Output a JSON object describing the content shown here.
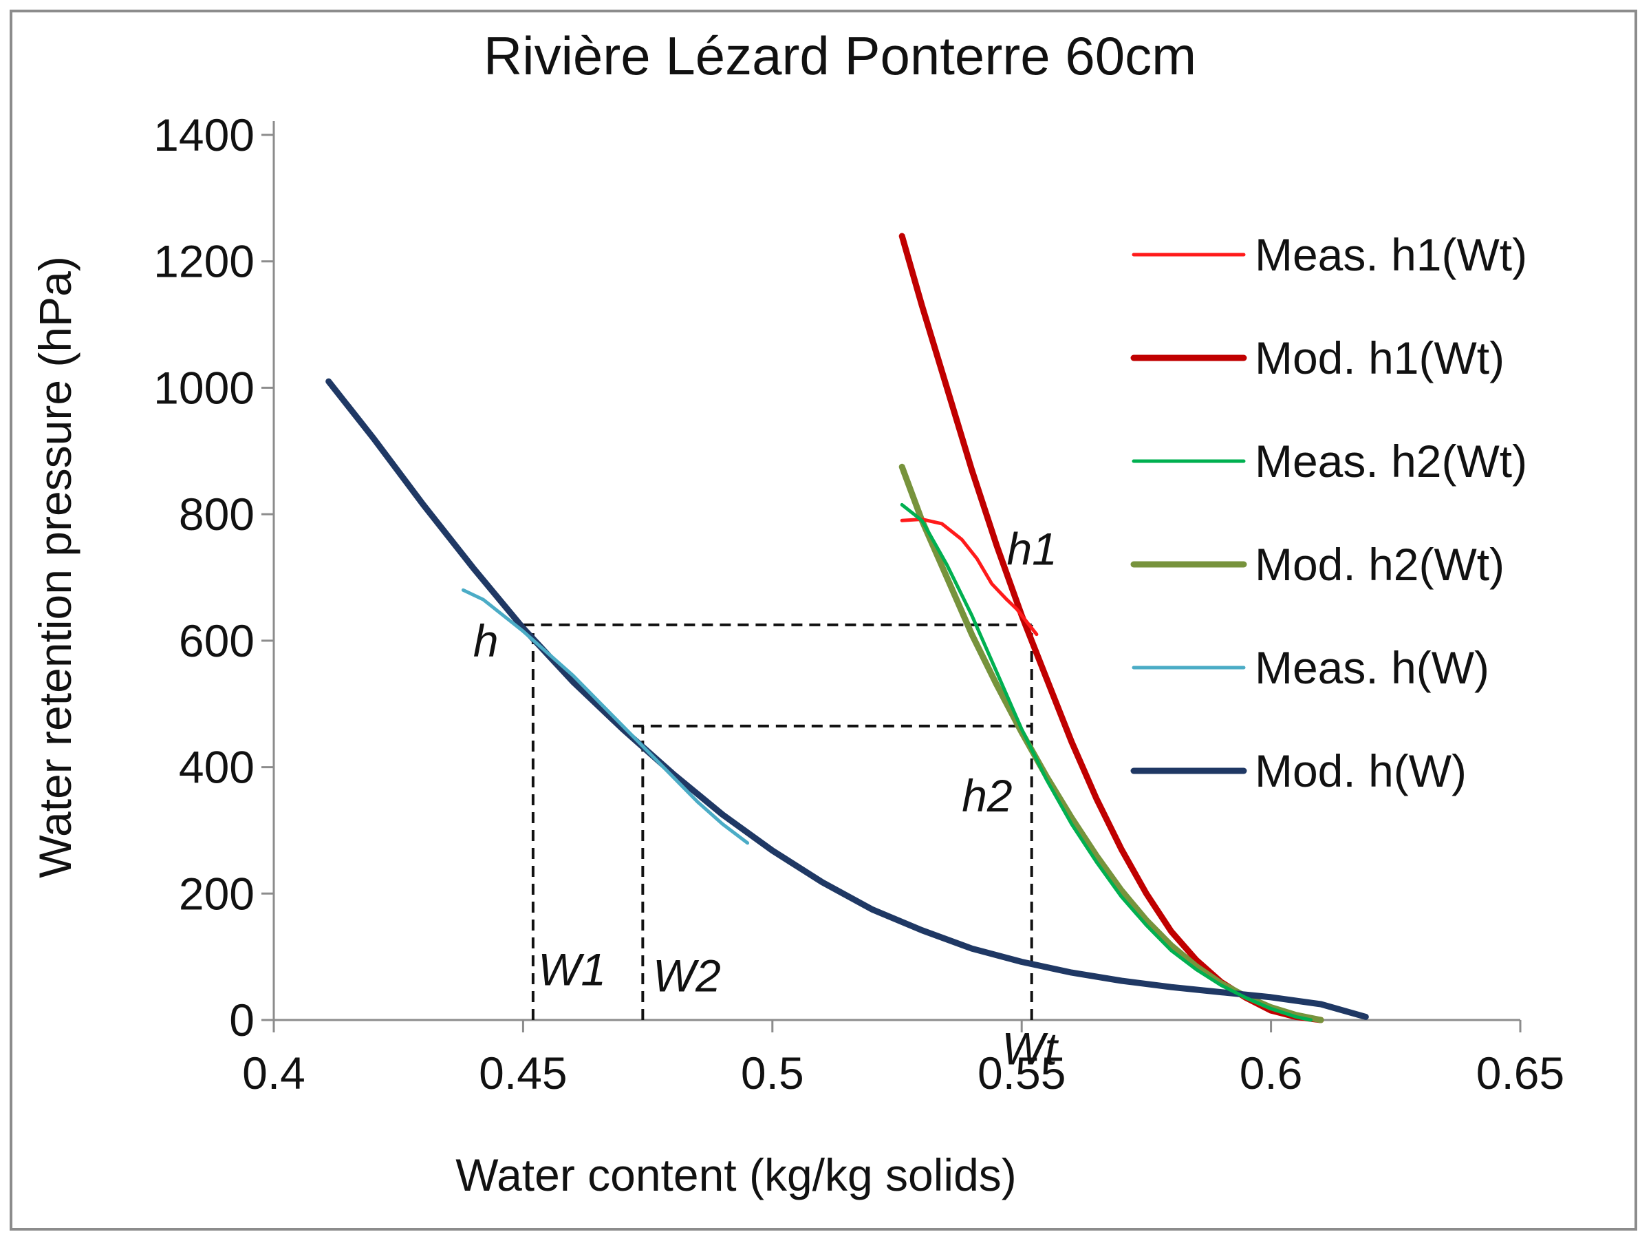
{
  "chart_data": {
    "type": "line",
    "title": "Rivière Lézard  Ponterre 60cm",
    "xlabel": "Water content (kg/kg solids)",
    "ylabel": "Water retention pressure (hPa)",
    "xlim": [
      0.4,
      0.65
    ],
    "ylim": [
      0,
      1400
    ],
    "xticks": [
      0.4,
      0.45,
      0.5,
      0.55,
      0.6,
      0.65
    ],
    "xtick_labels": [
      "0.4",
      "0.45",
      "0.5",
      "0.55",
      "0.6",
      "0.65"
    ],
    "yticks": [
      0,
      200,
      400,
      600,
      800,
      1000,
      1200,
      1400
    ],
    "ytick_labels": [
      "0",
      "200",
      "400",
      "600",
      "800",
      "1000",
      "1200",
      "1400"
    ],
    "legend_position": "right",
    "series": [
      {
        "name": "Meas. h1(Wt)",
        "color": "#ff1a1a",
        "width": "thin",
        "points": [
          [
            0.526,
            790
          ],
          [
            0.53,
            792
          ],
          [
            0.534,
            785
          ],
          [
            0.538,
            760
          ],
          [
            0.541,
            730
          ],
          [
            0.544,
            690
          ],
          [
            0.547,
            665
          ],
          [
            0.549,
            650
          ],
          [
            0.551,
            630
          ],
          [
            0.553,
            610
          ]
        ]
      },
      {
        "name": "Mod. h1(Wt)",
        "color": "#c00000",
        "width": "thick",
        "points": [
          [
            0.526,
            1240
          ],
          [
            0.53,
            1130
          ],
          [
            0.535,
            1000
          ],
          [
            0.54,
            870
          ],
          [
            0.545,
            750
          ],
          [
            0.55,
            640
          ],
          [
            0.555,
            540
          ],
          [
            0.56,
            440
          ],
          [
            0.565,
            350
          ],
          [
            0.57,
            270
          ],
          [
            0.575,
            200
          ],
          [
            0.58,
            140
          ],
          [
            0.585,
            95
          ],
          [
            0.59,
            60
          ],
          [
            0.595,
            35
          ],
          [
            0.6,
            15
          ],
          [
            0.605,
            5
          ],
          [
            0.61,
            0
          ]
        ]
      },
      {
        "name": "Meas. h2(Wt)",
        "color": "#00b050",
        "width": "thin",
        "points": [
          [
            0.526,
            815
          ],
          [
            0.53,
            790
          ],
          [
            0.535,
            720
          ],
          [
            0.54,
            640
          ],
          [
            0.545,
            550
          ],
          [
            0.55,
            460
          ],
          [
            0.555,
            380
          ],
          [
            0.56,
            310
          ],
          [
            0.565,
            250
          ],
          [
            0.57,
            195
          ],
          [
            0.575,
            150
          ],
          [
            0.58,
            110
          ],
          [
            0.585,
            80
          ],
          [
            0.59,
            55
          ],
          [
            0.595,
            35
          ],
          [
            0.6,
            18
          ],
          [
            0.605,
            5
          ],
          [
            0.608,
            0
          ]
        ]
      },
      {
        "name": "Mod. h2(Wt)",
        "color": "#77933c",
        "width": "thick",
        "points": [
          [
            0.526,
            875
          ],
          [
            0.53,
            790
          ],
          [
            0.535,
            700
          ],
          [
            0.54,
            610
          ],
          [
            0.545,
            530
          ],
          [
            0.55,
            455
          ],
          [
            0.555,
            385
          ],
          [
            0.56,
            320
          ],
          [
            0.565,
            260
          ],
          [
            0.57,
            205
          ],
          [
            0.575,
            158
          ],
          [
            0.58,
            118
          ],
          [
            0.585,
            85
          ],
          [
            0.59,
            58
          ],
          [
            0.595,
            37
          ],
          [
            0.6,
            20
          ],
          [
            0.605,
            8
          ],
          [
            0.61,
            0
          ]
        ]
      },
      {
        "name": "Meas. h(W)",
        "color": "#4bacc6",
        "width": "thin",
        "points": [
          [
            0.438,
            680
          ],
          [
            0.442,
            665
          ],
          [
            0.446,
            640
          ],
          [
            0.45,
            615
          ],
          [
            0.455,
            580
          ],
          [
            0.46,
            545
          ],
          [
            0.465,
            505
          ],
          [
            0.47,
            465
          ],
          [
            0.475,
            425
          ],
          [
            0.48,
            385
          ],
          [
            0.485,
            345
          ],
          [
            0.49,
            310
          ],
          [
            0.495,
            280
          ]
        ]
      },
      {
        "name": "Mod. h(W)",
        "color": "#1f3864",
        "width": "thick",
        "points": [
          [
            0.411,
            1010
          ],
          [
            0.42,
            920
          ],
          [
            0.43,
            815
          ],
          [
            0.44,
            715
          ],
          [
            0.45,
            620
          ],
          [
            0.46,
            535
          ],
          [
            0.47,
            460
          ],
          [
            0.48,
            390
          ],
          [
            0.49,
            325
          ],
          [
            0.5,
            268
          ],
          [
            0.51,
            218
          ],
          [
            0.52,
            175
          ],
          [
            0.53,
            142
          ],
          [
            0.54,
            113
          ],
          [
            0.55,
            92
          ],
          [
            0.56,
            75
          ],
          [
            0.57,
            62
          ],
          [
            0.58,
            52
          ],
          [
            0.59,
            44
          ],
          [
            0.6,
            36
          ],
          [
            0.61,
            25
          ],
          [
            0.619,
            5
          ]
        ]
      }
    ],
    "reference_lines": [
      {
        "kind": "h",
        "y": 625,
        "x_from": 0.45,
        "x_to": 0.552
      },
      {
        "kind": "h",
        "y": 465,
        "x_from": 0.472,
        "x_to": 0.552
      },
      {
        "kind": "v",
        "x": 0.452,
        "y_from": 0,
        "y_to": 625
      },
      {
        "kind": "v",
        "x": 0.474,
        "y_from": 0,
        "y_to": 465
      },
      {
        "kind": "v",
        "x": 0.552,
        "y_from": 0,
        "y_to": 625
      }
    ],
    "annotations": [
      {
        "text": "h1",
        "x": 0.547,
        "y": 720
      },
      {
        "text": "h",
        "x": 0.44,
        "y": 575
      },
      {
        "text": "h2",
        "x": 0.538,
        "y": 330
      },
      {
        "text": "W1",
        "x": 0.453,
        "y": 55
      },
      {
        "text": "W2",
        "x": 0.476,
        "y": 45
      },
      {
        "text": "Wt",
        "x": 0.546,
        "y": -70
      }
    ]
  }
}
